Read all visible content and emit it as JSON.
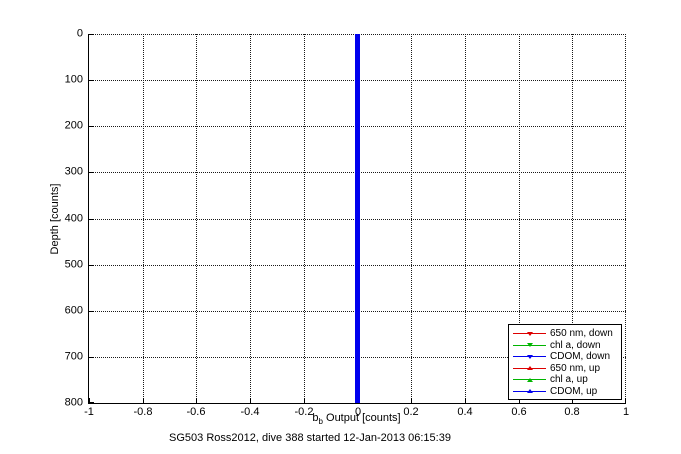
{
  "figure": {
    "background": "#ffffff",
    "caption": "SG503 Ross2012, dive 388 started 12-Jan-2013 06:15:39"
  },
  "chart_data": {
    "type": "line",
    "title": "",
    "caption": "SG503 Ross2012, dive 388 started 12-Jan-2013 06:15:39",
    "xlabel": "b_b Output [counts]",
    "xlabel_parts": {
      "prefix": "b",
      "subscript": "b",
      "suffix": " Output [counts]"
    },
    "ylabel": "Depth [counts]",
    "xlim": [
      -1,
      1
    ],
    "ylim": [
      0,
      800
    ],
    "y_axis_reversed": true,
    "grid": "on",
    "grid_style": "dotted",
    "xticks": [
      -1,
      -0.8,
      -0.6,
      -0.4,
      -0.2,
      0,
      0.2,
      0.4,
      0.6,
      0.8,
      1
    ],
    "xtick_labels": [
      "-1",
      "-0.8",
      "-0.6",
      "-0.4",
      "-0.2",
      "0",
      "0.2",
      "0.4",
      "0.6",
      "0.8",
      "1"
    ],
    "yticks": [
      0,
      100,
      200,
      300,
      400,
      500,
      600,
      700,
      800
    ],
    "ytick_labels": [
      "0",
      "100",
      "200",
      "300",
      "400",
      "500",
      "600",
      "700",
      "800"
    ],
    "legend_position": "bottom-right",
    "series": [
      {
        "name": "650 nm, down",
        "color": "#dd0000",
        "marker": "triangle-down",
        "x": 0,
        "depth_start": 0,
        "depth_end": 800
      },
      {
        "name": "chl a, down",
        "color": "#00b400",
        "marker": "triangle-down",
        "x": 0,
        "depth_start": 0,
        "depth_end": 800
      },
      {
        "name": "CDOM, down",
        "color": "#0000ee",
        "marker": "triangle-down",
        "x": 0,
        "depth_start": 0,
        "depth_end": 800
      },
      {
        "name": "650 nm, up",
        "color": "#dd0000",
        "marker": "triangle-up",
        "x": 0,
        "depth_start": 0,
        "depth_end": 800
      },
      {
        "name": "chl a, up",
        "color": "#00b400",
        "marker": "triangle-up",
        "x": 0,
        "depth_start": 0,
        "depth_end": 800
      },
      {
        "name": "CDOM, up",
        "color": "#0000ee",
        "marker": "triangle-up",
        "x": 0,
        "depth_start": 0,
        "depth_end": 800
      }
    ],
    "visible_line": {
      "x": 0,
      "color": "#0000ee",
      "thickness_px": 5
    },
    "note": "All six series read approximately 0 counts over the full 0-800 depth range, overlapping as a single thick blue vertical line at x=0"
  }
}
